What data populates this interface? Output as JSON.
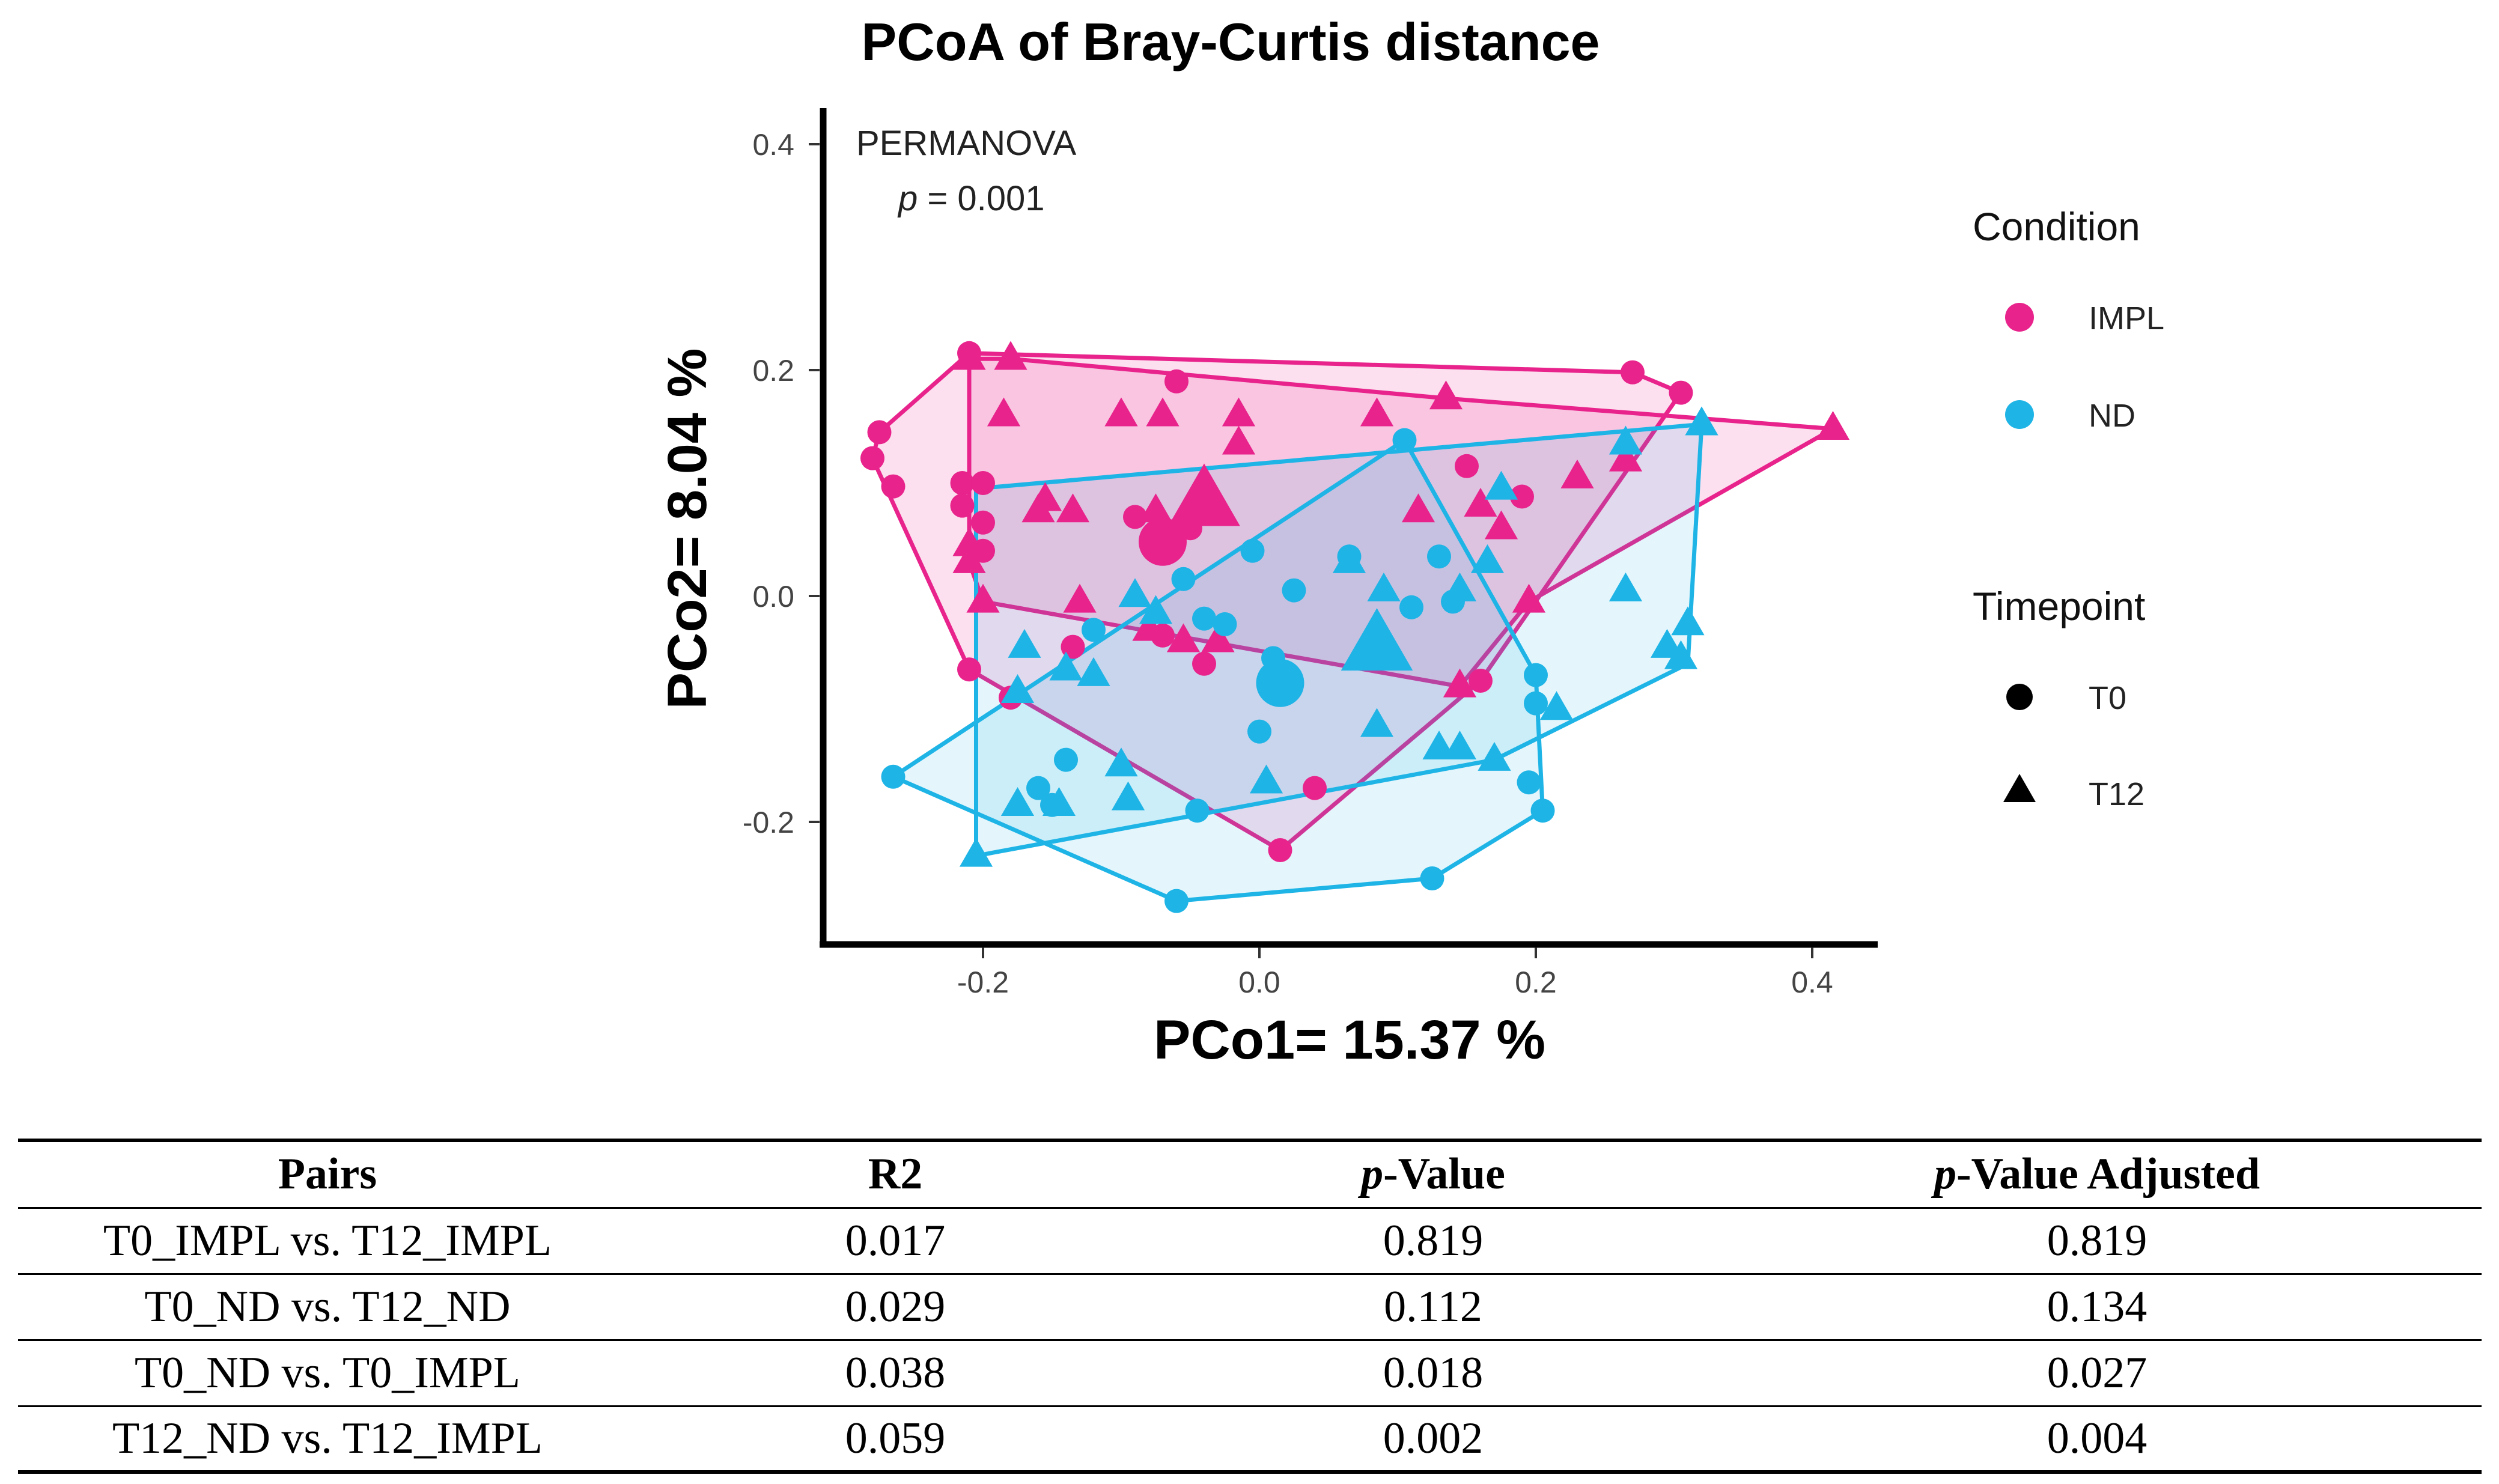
{
  "chart_data": {
    "type": "scatter",
    "title": "PCoA of Bray-Curtis distance",
    "xlabel": "PCo1= 15.37 %",
    "ylabel": "PCo2= 8.04 %",
    "xlim": [
      -0.31,
      0.44
    ],
    "ylim": [
      -0.315,
      0.42
    ],
    "xticks": [
      "-0.2",
      "0.0",
      "0.2",
      "0.4"
    ],
    "xtick_values": [
      -0.2,
      0.0,
      0.2,
      0.4
    ],
    "yticks": [
      "0.4",
      "0.2",
      "0.0",
      "-0.2"
    ],
    "ytick_values": [
      0.4,
      0.2,
      0.0,
      -0.2
    ],
    "annotation": {
      "line1": "PERMANOVA",
      "p_symbol": "p",
      "p_rest": " = 0.001"
    },
    "legend": {
      "condition_title": "Condition",
      "conditions": [
        {
          "label": "IMPL",
          "color": "#E8238C"
        },
        {
          "label": "ND",
          "color": "#1FB4E6"
        }
      ],
      "timepoint_title": "Timepoint",
      "timepoints": [
        {
          "label": "T0",
          "shape": "circle"
        },
        {
          "label": "T12",
          "shape": "triangle"
        }
      ]
    },
    "series": [
      {
        "name": "IMPL T0",
        "condition": "IMPL",
        "timepoint": "T0",
        "color": "#E8238C",
        "points": [
          [
            -0.21,
            0.215
          ],
          [
            -0.275,
            0.145
          ],
          [
            -0.28,
            0.122
          ],
          [
            -0.265,
            0.097
          ],
          [
            -0.215,
            0.1
          ],
          [
            -0.2,
            0.1
          ],
          [
            -0.215,
            0.08
          ],
          [
            -0.2,
            0.065
          ],
          [
            -0.06,
            0.19
          ],
          [
            -0.09,
            0.07
          ],
          [
            -0.2,
            0.04
          ],
          [
            -0.21,
            -0.065
          ],
          [
            -0.135,
            -0.045
          ],
          [
            -0.07,
            -0.035
          ],
          [
            -0.04,
            -0.06
          ],
          [
            -0.18,
            -0.09
          ],
          [
            0.015,
            -0.225
          ],
          [
            0.04,
            -0.17
          ],
          [
            0.15,
            0.115
          ],
          [
            0.19,
            0.088
          ],
          [
            0.27,
            0.198
          ],
          [
            0.305,
            0.18
          ],
          [
            0.16,
            -0.075
          ],
          [
            -0.05,
            0.06
          ]
        ]
      },
      {
        "name": "IMPL T12",
        "condition": "IMPL",
        "timepoint": "T12",
        "color": "#E8238C",
        "points": [
          [
            -0.21,
            0.21
          ],
          [
            -0.18,
            0.21
          ],
          [
            -0.185,
            0.16
          ],
          [
            -0.1,
            0.16
          ],
          [
            -0.07,
            0.16
          ],
          [
            -0.015,
            0.16
          ],
          [
            -0.015,
            0.135
          ],
          [
            0.085,
            0.16
          ],
          [
            0.135,
            0.175
          ],
          [
            -0.21,
            0.045
          ],
          [
            -0.21,
            0.03
          ],
          [
            -0.2,
            -0.005
          ],
          [
            -0.155,
            0.085
          ],
          [
            -0.135,
            0.075
          ],
          [
            -0.16,
            0.075
          ],
          [
            0.115,
            0.075
          ],
          [
            0.16,
            0.08
          ],
          [
            0.175,
            0.06
          ],
          [
            0.23,
            0.105
          ],
          [
            0.265,
            0.12
          ],
          [
            0.415,
            0.148
          ],
          [
            0.195,
            -0.005
          ],
          [
            0.145,
            -0.08
          ],
          [
            -0.075,
            0.075
          ],
          [
            -0.055,
            -0.04
          ],
          [
            -0.03,
            -0.04
          ],
          [
            -0.08,
            -0.03
          ],
          [
            -0.13,
            -0.005
          ],
          [
            -0.035,
            0.085
          ]
        ]
      },
      {
        "name": "ND T0",
        "condition": "ND",
        "timepoint": "T0",
        "color": "#1FB4E6",
        "points": [
          [
            0.105,
            0.138
          ],
          [
            -0.005,
            0.04
          ],
          [
            0.025,
            0.005
          ],
          [
            0.065,
            0.035
          ],
          [
            0.13,
            0.035
          ],
          [
            0.14,
            -0.005
          ],
          [
            0.11,
            -0.01
          ],
          [
            -0.055,
            0.015
          ],
          [
            -0.025,
            -0.025
          ],
          [
            -0.12,
            -0.03
          ],
          [
            -0.04,
            -0.02
          ],
          [
            0.01,
            -0.055
          ],
          [
            0.2,
            -0.07
          ],
          [
            0.2,
            -0.095
          ],
          [
            -0.14,
            -0.145
          ],
          [
            -0.16,
            -0.17
          ],
          [
            -0.15,
            -0.185
          ],
          [
            0.0,
            -0.12
          ],
          [
            -0.045,
            -0.19
          ],
          [
            -0.265,
            -0.16
          ],
          [
            -0.06,
            -0.27
          ],
          [
            0.125,
            -0.25
          ],
          [
            0.195,
            -0.165
          ],
          [
            0.205,
            -0.19
          ],
          [
            0.015,
            -0.085
          ]
        ]
      },
      {
        "name": "ND T12",
        "condition": "ND",
        "timepoint": "T12",
        "color": "#1FB4E6",
        "points": [
          [
            0.32,
            0.152
          ],
          [
            0.265,
            0.135
          ],
          [
            0.175,
            0.095
          ],
          [
            0.165,
            0.03
          ],
          [
            0.145,
            0.005
          ],
          [
            0.065,
            0.03
          ],
          [
            0.09,
            0.005
          ],
          [
            0.08,
            -0.055
          ],
          [
            -0.09,
            0.0
          ],
          [
            -0.075,
            -0.015
          ],
          [
            -0.17,
            -0.045
          ],
          [
            -0.14,
            -0.065
          ],
          [
            -0.12,
            -0.07
          ],
          [
            -0.175,
            -0.085
          ],
          [
            -0.1,
            -0.15
          ],
          [
            -0.095,
            -0.18
          ],
          [
            -0.145,
            -0.185
          ],
          [
            -0.175,
            -0.185
          ],
          [
            0.005,
            -0.165
          ],
          [
            0.085,
            -0.115
          ],
          [
            0.13,
            -0.135
          ],
          [
            0.145,
            -0.135
          ],
          [
            0.17,
            -0.145
          ],
          [
            0.215,
            -0.1
          ],
          [
            0.265,
            0.005
          ],
          [
            0.295,
            -0.045
          ],
          [
            0.31,
            -0.025
          ],
          [
            0.305,
            -0.055
          ],
          [
            -0.205,
            -0.23
          ]
        ]
      }
    ],
    "centroids": [
      {
        "name": "IMPL T0 centroid",
        "color": "#E8238C",
        "shape": "circle",
        "point": [
          -0.07,
          0.048
        ]
      },
      {
        "name": "IMPL T12 centroid",
        "color": "#E8238C",
        "shape": "triangle",
        "point": [
          -0.04,
          0.083
        ]
      },
      {
        "name": "ND T0 centroid",
        "color": "#1FB4E6",
        "shape": "circle",
        "point": [
          0.015,
          -0.077
        ]
      },
      {
        "name": "ND T12 centroid",
        "color": "#1FB4E6",
        "shape": "triangle",
        "point": [
          0.085,
          -0.045
        ]
      }
    ],
    "hulls": [
      {
        "name": "IMPL T0 hull",
        "color": "#E8238C",
        "fill_opacity": 0.14,
        "points": [
          [
            -0.21,
            0.215
          ],
          [
            0.27,
            0.198
          ],
          [
            0.305,
            0.18
          ],
          [
            0.16,
            -0.075
          ],
          [
            0.015,
            -0.225
          ],
          [
            -0.21,
            -0.065
          ],
          [
            -0.28,
            0.122
          ],
          [
            -0.275,
            0.145
          ]
        ]
      },
      {
        "name": "IMPL T12 hull",
        "color": "#E8238C",
        "fill_opacity": 0.14,
        "points": [
          [
            -0.21,
            0.21
          ],
          [
            -0.18,
            0.21
          ],
          [
            0.135,
            0.175
          ],
          [
            0.415,
            0.148
          ],
          [
            0.195,
            -0.005
          ],
          [
            0.145,
            -0.08
          ],
          [
            -0.2,
            -0.005
          ],
          [
            -0.21,
            0.03
          ]
        ]
      },
      {
        "name": "ND T0 hull",
        "color": "#1FB4E6",
        "fill_opacity": 0.12,
        "points": [
          [
            0.105,
            0.138
          ],
          [
            0.2,
            -0.07
          ],
          [
            0.205,
            -0.19
          ],
          [
            0.125,
            -0.25
          ],
          [
            -0.06,
            -0.27
          ],
          [
            -0.265,
            -0.16
          ]
        ]
      },
      {
        "name": "ND T12 hull",
        "color": "#1FB4E6",
        "fill_opacity": 0.12,
        "points": [
          [
            -0.205,
            0.095
          ],
          [
            0.32,
            0.152
          ],
          [
            0.31,
            -0.06
          ],
          [
            0.17,
            -0.145
          ],
          [
            -0.205,
            -0.23
          ]
        ]
      }
    ]
  },
  "table": {
    "headers": [
      {
        "italic": "",
        "text": "Pairs"
      },
      {
        "italic": "",
        "text": "R2"
      },
      {
        "italic": "p",
        "text": "-Value"
      },
      {
        "italic": "p",
        "text": "-Value Adjusted"
      }
    ],
    "rows": [
      [
        "T0_IMPL vs. T12_IMPL",
        "0.017",
        "0.819",
        "0.819"
      ],
      [
        "T0_ND vs. T12_ND",
        "0.029",
        "0.112",
        "0.134"
      ],
      [
        "T0_ND vs. T0_IMPL",
        "0.038",
        "0.018",
        "0.027"
      ],
      [
        "T12_ND vs. T12_IMPL",
        "0.059",
        "0.002",
        "0.004"
      ]
    ]
  }
}
